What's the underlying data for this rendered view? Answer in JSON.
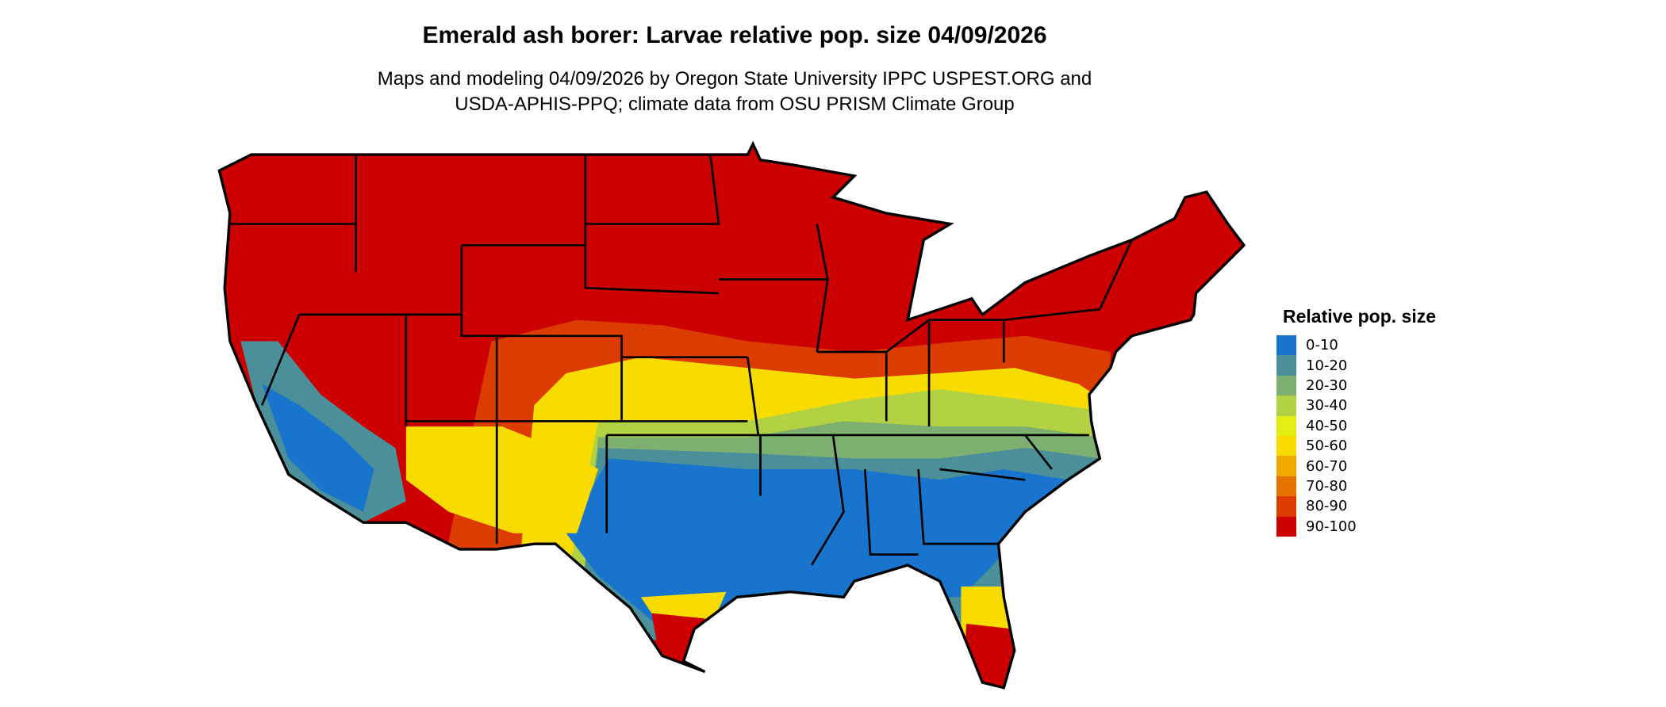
{
  "title": "Emerald ash borer: Larvae relative pop. size 04/09/2026",
  "subtitle_lines": [
    "Maps and modeling 04/09/2026 by Oregon State University IPPC USPEST.ORG and",
    "USDA-APHIS-PPQ; climate data from OSU PRISM Climate Group"
  ],
  "legend": {
    "title": "Relative pop. size",
    "position": "right",
    "items": [
      {
        "label": "0-10",
        "color": "#1874CD"
      },
      {
        "label": "10-20",
        "color": "#4A8F9A"
      },
      {
        "label": "20-30",
        "color": "#7DB070"
      },
      {
        "label": "30-40",
        "color": "#B2D143"
      },
      {
        "label": "40-50",
        "color": "#E4EE14"
      },
      {
        "label": "50-60",
        "color": "#F8DC00"
      },
      {
        "label": "60-70",
        "color": "#F0A800"
      },
      {
        "label": "70-80",
        "color": "#E47200"
      },
      {
        "label": "80-90",
        "color": "#DC3C00"
      },
      {
        "label": "90-100",
        "color": "#CC0000"
      }
    ]
  },
  "map": {
    "region": "Contiguous United States",
    "borders": "state boundaries in black"
  }
}
